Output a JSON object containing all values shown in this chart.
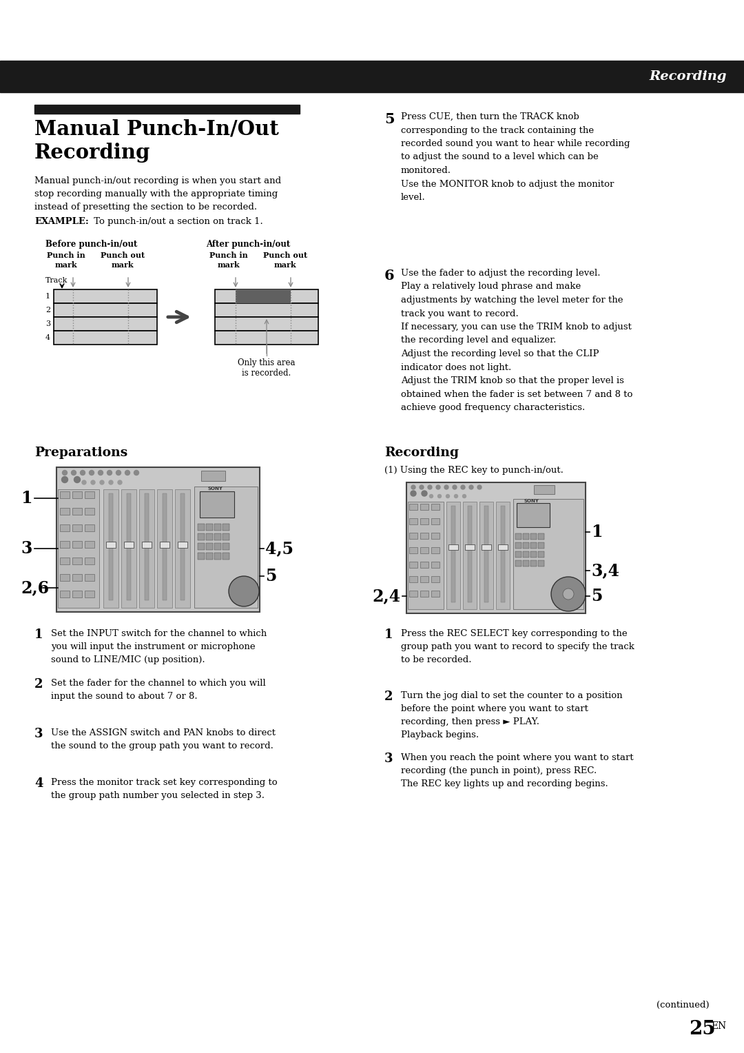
{
  "page_bg": "#ffffff",
  "header_bg": "#1a1a1a",
  "header_text": "Recording",
  "header_text_color": "#ffffff",
  "title_bar_color": "#1a1a1a",
  "intro_text": "Manual punch-in/out recording is when you start and\nstop recording manually with the appropriate timing\ninstead of presetting the section to be recorded.",
  "example_label": "EXAMPLE:",
  "example_text": " To punch-in/out a section on track 1.",
  "before_label": "Before punch-in/out",
  "after_label": "After punch-in/out",
  "only_this_area": "Only this area\nis recorded.",
  "preparations_label": "Preparations",
  "recording_label": "Recording",
  "using_rec_key": "(1) Using the REC key to punch-in/out.",
  "step5_text": "Press CUE, then turn the TRACK knob\ncorresponding to the track containing the\nrecorded sound you want to hear while recording\nto adjust the sound to a level which can be\nmonitored.\nUse the MONITOR knob to adjust the monitor\nlevel.",
  "step6_text": "Use the fader to adjust the recording level.\nPlay a relatively loud phrase and make\nadjustments by watching the level meter for the\ntrack you want to record.\nIf necessary, you can use the TRIM knob to adjust\nthe recording level and equalizer.\nAdjust the recording level so that the CLIP\nindicator does not light.\nAdjust the TRIM knob so that the proper level is\nobtained when the fader is set between 7 and 8 to\nachieve good frequency characteristics.",
  "prep_steps": [
    {
      "num": "1",
      "bold": true,
      "text": "Set the INPUT switch for the channel to which\nyou will input the instrument or microphone\nsound to LINE/MIC (up position)."
    },
    {
      "num": "2",
      "bold": true,
      "text": "Set the fader for the channel to which you will\ninput the sound to about 7 or 8."
    },
    {
      "num": "3",
      "bold": true,
      "text": "Use the ASSIGN switch and PAN knobs to direct\nthe sound to the group path you want to record."
    },
    {
      "num": "4",
      "bold": true,
      "text": "Press the monitor track set key corresponding to\nthe group path number you selected in step 3."
    }
  ],
  "rec_steps": [
    {
      "num": "1",
      "bold": true,
      "text": "Press the REC SELECT key corresponding to the\ngroup path you want to record to specify the track\nto be recorded."
    },
    {
      "num": "2",
      "bold": true,
      "text": "Turn the jog dial to set the counter to a position\nbefore the point where you want to start\nrecording, then press ► PLAY.\nPlayback begins."
    },
    {
      "num": "3",
      "bold": true,
      "text": "When you reach the point where you want to start\nrecording (the punch in point), press REC.\nThe REC key lights up and recording begins."
    }
  ],
  "continued_text": "(continued)",
  "page_num": "25",
  "page_num_super": "EN"
}
